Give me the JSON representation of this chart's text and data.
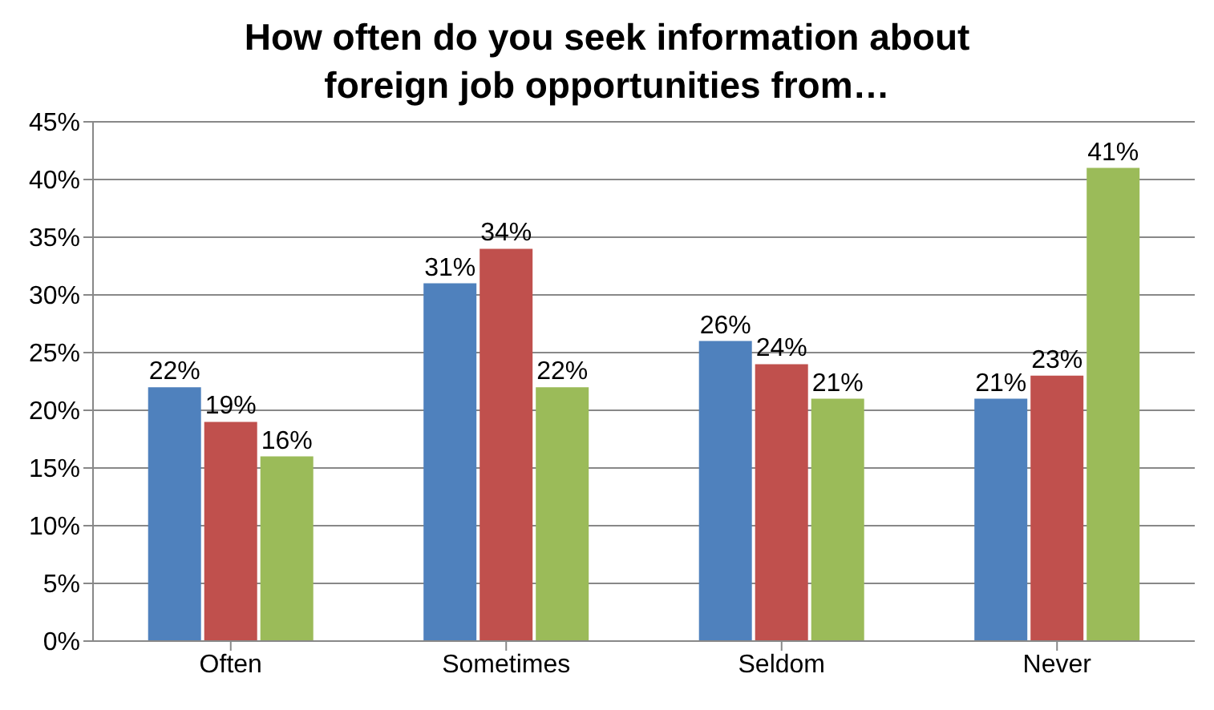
{
  "chart_data": {
    "type": "bar",
    "title": "How often do you seek information about foreign job opportunities from…",
    "categories": [
      "Often",
      "Sometimes",
      "Seldom",
      "Never"
    ],
    "series": [
      {
        "color": "#4f81bd",
        "values": [
          22,
          31,
          26,
          21
        ],
        "value_labels": [
          "22%",
          "31%",
          "26%",
          "21%"
        ]
      },
      {
        "color": "#c0504d",
        "values": [
          19,
          34,
          24,
          23
        ],
        "value_labels": [
          "19%",
          "34%",
          "24%",
          "23%"
        ]
      },
      {
        "color": "#9bbb59",
        "values": [
          16,
          22,
          21,
          41
        ],
        "value_labels": [
          "16%",
          "22%",
          "21%",
          "41%"
        ]
      }
    ],
    "ylim": [
      0,
      45
    ],
    "yticks": [
      {
        "value": 0,
        "label": "0%"
      },
      {
        "value": 5,
        "label": "5%"
      },
      {
        "value": 10,
        "label": "10%"
      },
      {
        "value": 15,
        "label": "15%"
      },
      {
        "value": 20,
        "label": "20%"
      },
      {
        "value": 25,
        "label": "25%"
      },
      {
        "value": 30,
        "label": "30%"
      },
      {
        "value": 35,
        "label": "35%"
      },
      {
        "value": 40,
        "label": "40%"
      },
      {
        "value": 45,
        "label": "45%"
      }
    ],
    "grid": "y"
  }
}
